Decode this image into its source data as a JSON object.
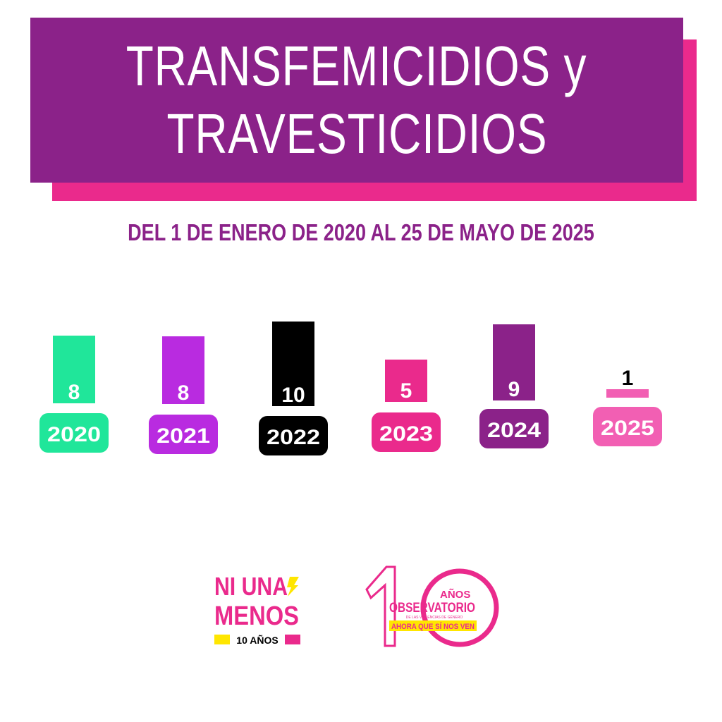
{
  "header": {
    "title_line1": "TRANSFEMICIDIOS y",
    "title_line2": "TRAVESTICIDIOS",
    "subtitle": "DEL 1 DE ENERO DE 2020 AL 25 DE MAYO DE 2025"
  },
  "chart_data": {
    "type": "bar",
    "categories": [
      "2020",
      "2021",
      "2022",
      "2023",
      "2024",
      "2025"
    ],
    "values": [
      8,
      8,
      10,
      5,
      9,
      1
    ],
    "colors": [
      "#20e69a",
      "#b92be0",
      "#000000",
      "#ea2a8c",
      "#8b2289",
      "#f25fb3"
    ],
    "label_colors": [
      "#ffffff",
      "#ffffff",
      "#ffffff",
      "#ffffff",
      "#ffffff",
      "#000000"
    ],
    "ylim": [
      0,
      10
    ],
    "grid": false
  },
  "logos": {
    "niunamenos": {
      "line1": "NI UNA",
      "line2": "MENOS",
      "line3": "10 AÑOS"
    },
    "observatorio": {
      "line1": "AÑOS",
      "line2": "OBSERVATORIO",
      "line3": "DE LAS VIOLENCIAS DE GÉNERO",
      "line4": "AHORA QUE SÍ NOS VEN"
    }
  },
  "accent_colors": {
    "purple": "#8b2289",
    "pink": "#ea2a8c",
    "yellow": "#ffe600"
  }
}
